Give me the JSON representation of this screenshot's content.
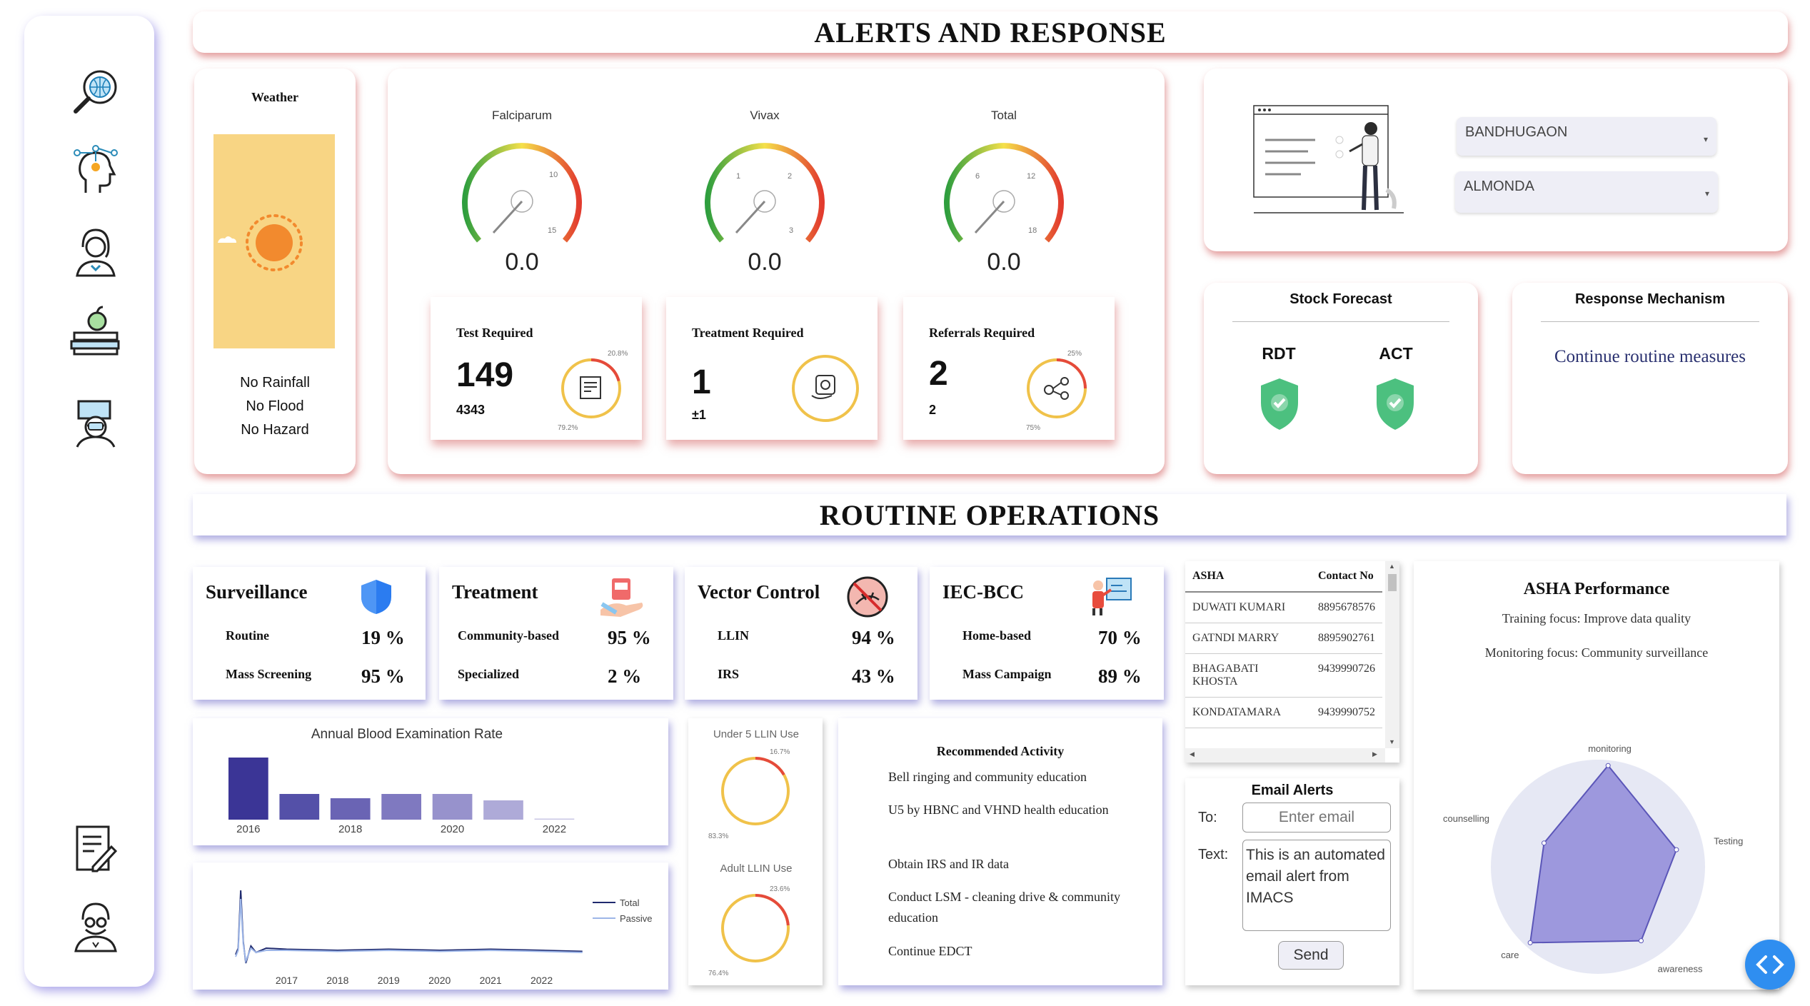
{
  "headers": {
    "alerts": "ALERTS AND RESPONSE",
    "routine": "ROUTINE OPERATIONS"
  },
  "sidebar": {
    "icons": [
      "globe-search-icon",
      "network-head-icon",
      "health-worker-icon",
      "books-apple-icon",
      "doctor-laptop-icon",
      "report-edit-icon",
      "scientist-icon"
    ]
  },
  "weather": {
    "title": "Weather",
    "line1": "No Rainfall",
    "line2": "No Flood",
    "line3": "No Hazard",
    "bg_color": "#f8d584",
    "sun_color": "#f28a2e"
  },
  "gauges": [
    {
      "label": "Falciparum",
      "value": "0.0",
      "ticks": [
        "10",
        "15"
      ]
    },
    {
      "label": "Vivax",
      "value": "0.0",
      "ticks": [
        "1",
        "2",
        "3"
      ]
    },
    {
      "label": "Total",
      "value": "0.0",
      "ticks": [
        "6",
        "12",
        "18"
      ]
    }
  ],
  "required": [
    {
      "title": "Test Required",
      "big": "149",
      "sub": "4343",
      "top_pct": "20.8%",
      "bottom_pct": "79.2%",
      "fraction": 0.208,
      "icon": "clipboard-icon"
    },
    {
      "title": "Treatment Required",
      "big": "1",
      "sub": "±1",
      "top_pct": "",
      "bottom_pct": "",
      "fraction": 0.0,
      "icon": "pill-hand-icon"
    },
    {
      "title": "Referrals Required",
      "big": "2",
      "sub": "2",
      "top_pct": "25%",
      "bottom_pct": "75%",
      "fraction": 0.25,
      "icon": "referral-network-icon"
    }
  ],
  "locations": {
    "district": "BANDHUGAON",
    "block": "ALMONDA"
  },
  "stock": {
    "title": "Stock Forecast",
    "item1": "RDT",
    "item2": "ACT"
  },
  "response": {
    "title": "Response Mechanism",
    "text": "Continue routine measures"
  },
  "routine_cards": [
    {
      "title": "Surveillance",
      "icon": "shield-icon",
      "row1_label": "Routine",
      "row1_val": "19 %",
      "row2_label": "Mass Screening",
      "row2_val": "95 %"
    },
    {
      "title": "Treatment",
      "icon": "medicine-hand-icon",
      "row1_label": "Community-based",
      "row1_val": "95 %",
      "row2_label": "Specialized",
      "row2_val": "2 %"
    },
    {
      "title": "Vector Control",
      "icon": "no-mosquito-icon",
      "row1_label": "LLIN",
      "row1_val": "94 %",
      "row2_label": "IRS",
      "row2_val": "43 %"
    },
    {
      "title": "IEC-BCC",
      "icon": "presenter-board-icon",
      "row1_label": "Home-based",
      "row1_val": "70 %",
      "row2_label": "Mass Campaign",
      "row2_val": "89 %"
    }
  ],
  "chart_data": [
    {
      "type": "bar",
      "title": "Annual Blood Examination Rate",
      "categories": [
        "2016",
        "2017",
        "2018",
        "2019",
        "2020",
        "2021",
        "2022"
      ],
      "values": [
        29,
        12,
        10,
        12,
        12,
        9,
        0.5
      ],
      "xticks": [
        "2016",
        "2018",
        "2020",
        "2022"
      ],
      "ylim": [
        0,
        30
      ]
    },
    {
      "type": "line",
      "xticks": [
        "2017",
        "2018",
        "2019",
        "2020",
        "2021",
        "2022"
      ],
      "series": [
        {
          "name": "Total",
          "color": "#1f2a6e",
          "x": [
            2016.0,
            2016.05,
            2016.1,
            2016.15,
            2016.2,
            2016.3,
            2016.4,
            2016.6,
            2017,
            2018,
            2019,
            2020,
            2021,
            2022,
            2022.8
          ],
          "values": [
            2,
            5,
            32,
            8,
            -2,
            6,
            3,
            5,
            4.5,
            4,
            4.5,
            4,
            4.5,
            4,
            3.5
          ]
        },
        {
          "name": "Passive",
          "color": "#9db6e8",
          "x": [
            2016.0,
            2016.05,
            2016.1,
            2016.15,
            2016.2,
            2016.3,
            2016.4,
            2016.6,
            2017,
            2018,
            2019,
            2020,
            2021,
            2022,
            2022.8
          ],
          "values": [
            1,
            4,
            28,
            7,
            -1,
            5,
            3,
            4,
            4,
            3.5,
            4,
            3.5,
            4,
            3.5,
            3
          ]
        }
      ]
    },
    {
      "type": "pie",
      "title": "Under 5 LLIN Use",
      "labels": [
        "16.7%",
        "83.3%"
      ],
      "values": [
        16.7,
        83.3
      ]
    },
    {
      "type": "pie",
      "title": "Adult LLIN Use",
      "labels": [
        "23.6%",
        "76.4%"
      ],
      "values": [
        23.6,
        76.4
      ]
    },
    {
      "type": "radar",
      "title": "ASHA Performance",
      "categories": [
        "monitoring",
        "Testing",
        "awareness",
        "care",
        "counselling"
      ],
      "values": [
        0.95,
        0.75,
        0.8,
        0.95,
        0.55
      ]
    }
  ],
  "recommended": {
    "title": "Recommended Activity",
    "items": [
      "Bell ringing and community education",
      "U5 by HBNC and VHND health education",
      "Obtain IRS and IR data",
      "Conduct LSM - cleaning drive & community education",
      "Continue EDCT"
    ]
  },
  "asha_table": {
    "col1": "ASHA",
    "col2": "Contact No",
    "rows": [
      {
        "name": "DUWATI KUMARI",
        "phone": "8895678576"
      },
      {
        "name": "GATNDI MARRY",
        "phone": "8895902761"
      },
      {
        "name": "BHAGABATI KHOSTA",
        "phone": "9439990726"
      },
      {
        "name": "KONDATAMARA",
        "phone": "9439990752"
      }
    ]
  },
  "email": {
    "title": "Email Alerts",
    "to_label": "To:",
    "to_placeholder": "Enter email",
    "text_label": "Text:",
    "text_value": "This is an automated email alert from IMACS",
    "send": "Send"
  },
  "asha_perf": {
    "title": "ASHA Performance",
    "training": "Training focus: Improve data quality",
    "monitoring": "Monitoring focus: Community surveillance"
  },
  "colors": {
    "accent": "#3b3596",
    "bar_colors": [
      "#3b3596",
      "#5450a8",
      "#6a64b4",
      "#7f79c0",
      "#9792cc",
      "#aeaad8",
      "#c9c6e4"
    ],
    "gauge_low": "#2e9e3e",
    "gauge_mid": "#f5e04a",
    "gauge_high": "#e23b2e",
    "shield_green": "#4cc07f"
  }
}
